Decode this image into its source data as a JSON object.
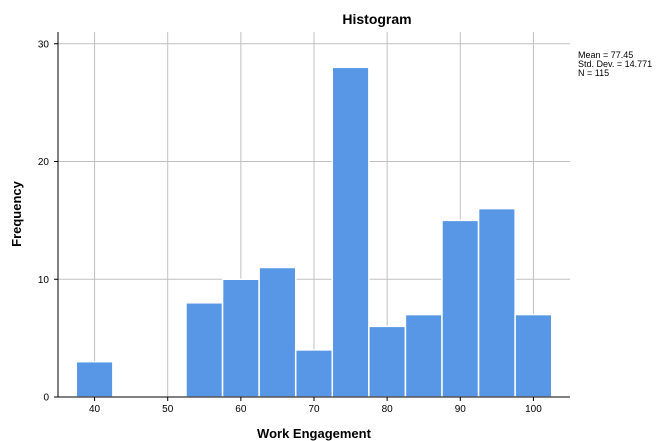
{
  "chart_data": {
    "type": "bar",
    "title": "Histogram",
    "xlabel": "Work Engagement",
    "ylabel": "Frequency",
    "xlim": [
      35,
      105
    ],
    "ylim": [
      0,
      31
    ],
    "x_ticks": [
      40,
      50,
      60,
      70,
      80,
      90,
      100
    ],
    "y_ticks": [
      0,
      10,
      20,
      30
    ],
    "grid": true,
    "bin_width": 5,
    "bins": [
      {
        "start": 37.5,
        "end": 42.5,
        "count": 3
      },
      {
        "start": 42.5,
        "end": 47.5,
        "count": 0
      },
      {
        "start": 47.5,
        "end": 52.5,
        "count": 0
      },
      {
        "start": 52.5,
        "end": 57.5,
        "count": 8
      },
      {
        "start": 57.5,
        "end": 62.5,
        "count": 10
      },
      {
        "start": 62.5,
        "end": 67.5,
        "count": 11
      },
      {
        "start": 67.5,
        "end": 72.5,
        "count": 4
      },
      {
        "start": 72.5,
        "end": 77.5,
        "count": 28
      },
      {
        "start": 77.5,
        "end": 82.5,
        "count": 6
      },
      {
        "start": 82.5,
        "end": 87.5,
        "count": 7
      },
      {
        "start": 87.5,
        "end": 92.5,
        "count": 15
      },
      {
        "start": 92.5,
        "end": 97.5,
        "count": 16
      },
      {
        "start": 97.5,
        "end": 102.5,
        "count": 7
      }
    ],
    "stats": {
      "mean": "Mean = 77.45",
      "std_dev": "Std. Dev. = 14.771",
      "n": "N = 115"
    },
    "legend_placement": "top-right",
    "bar_color": "#5797e6",
    "bar_edge_color": "#ffffff",
    "grid_color": "#c0c0c0"
  }
}
